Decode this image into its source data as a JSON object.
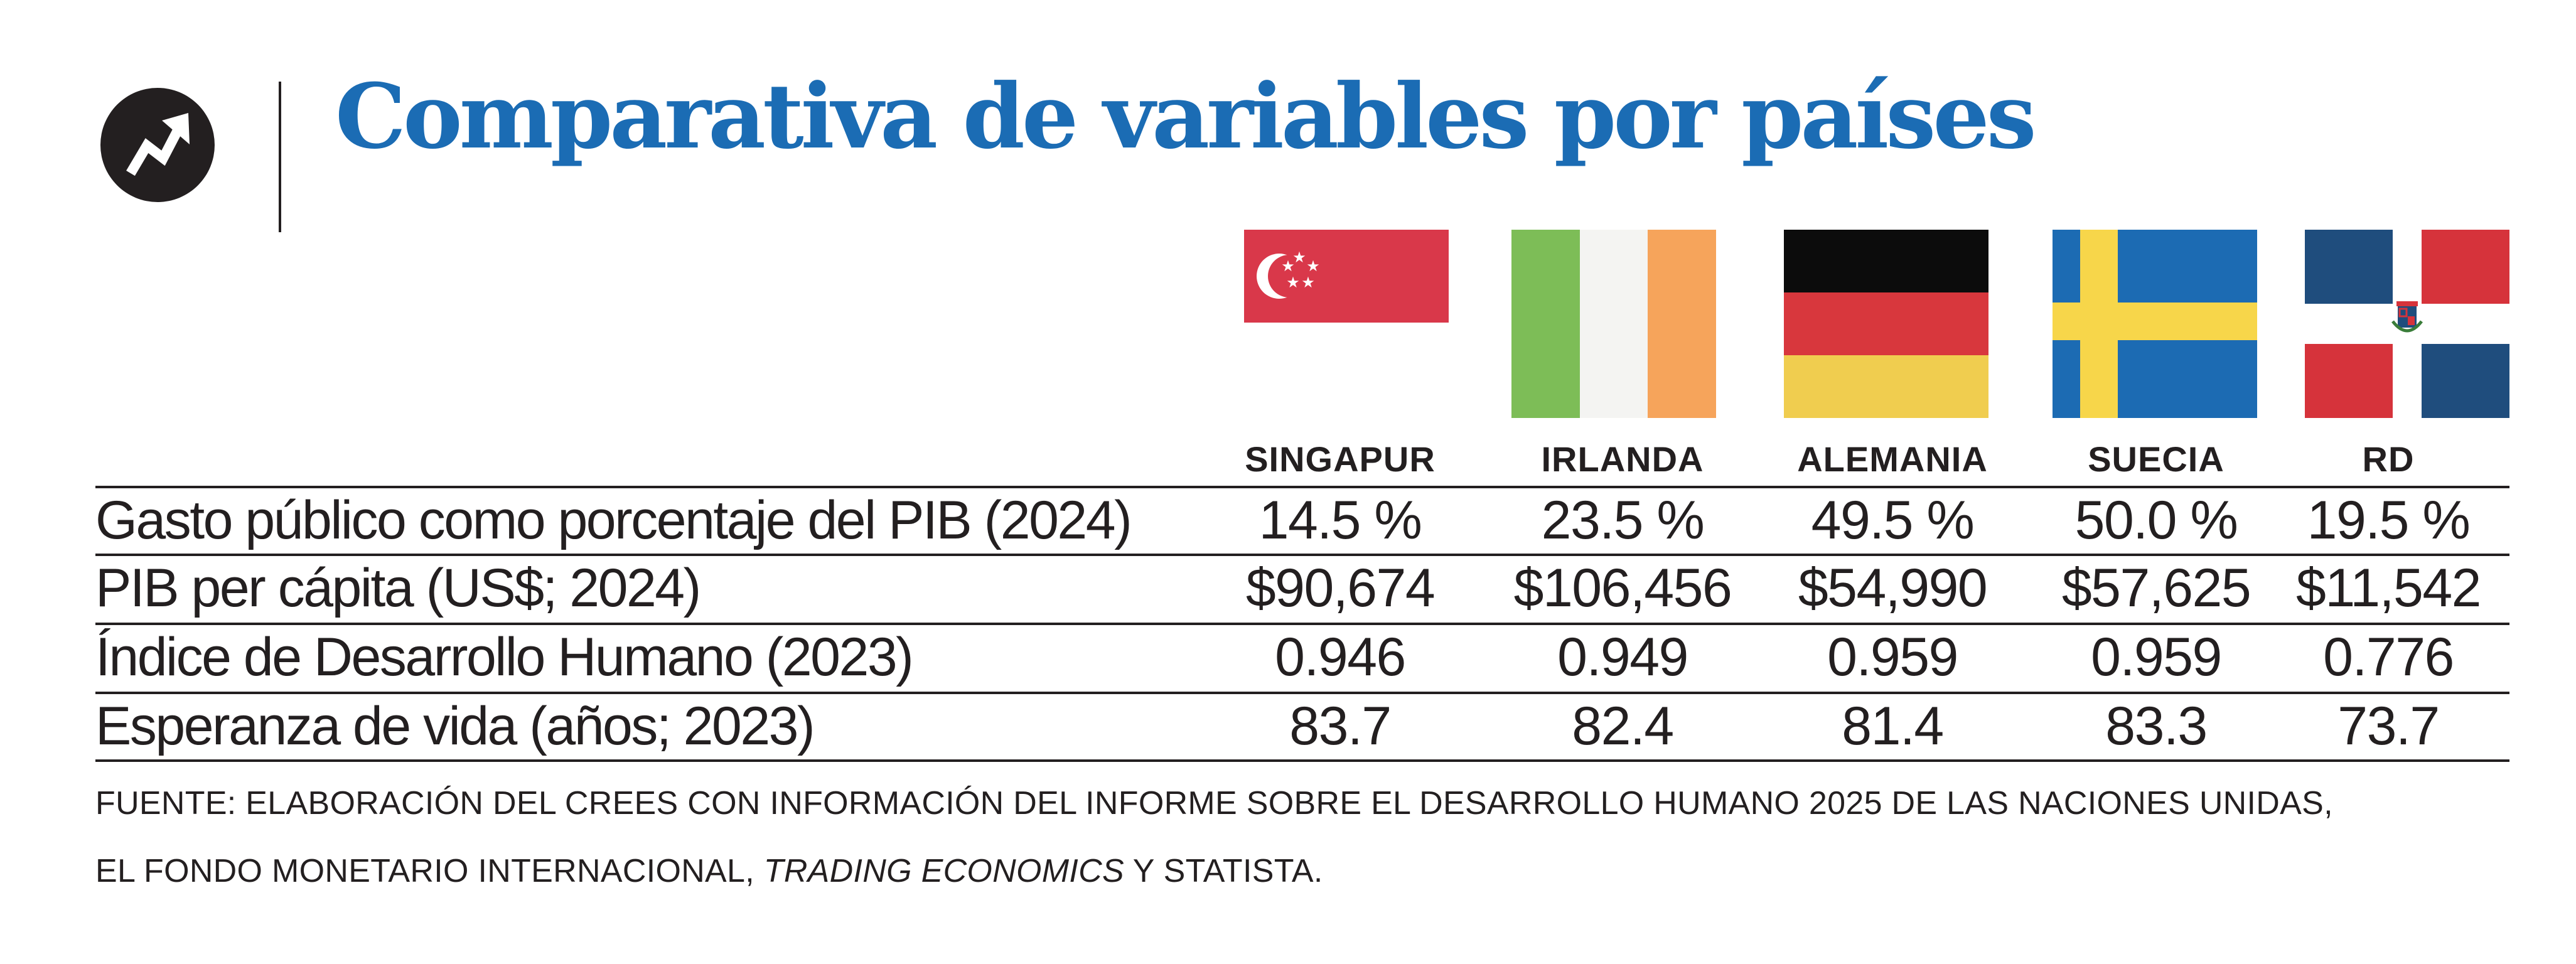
{
  "logo": {
    "icon": "trend-arrow-icon"
  },
  "title": "Comparativa de variables por países",
  "chart_data": {
    "type": "table",
    "title": "Comparativa de variables por países",
    "columns": [
      {
        "key": "singapur",
        "name": "SINGAPUR",
        "flag": "singapore-flag-icon"
      },
      {
        "key": "irlanda",
        "name": "IRLANDA",
        "flag": "ireland-flag-icon"
      },
      {
        "key": "alemania",
        "name": "ALEMANIA",
        "flag": "germany-flag-icon"
      },
      {
        "key": "suecia",
        "name": "SUECIA",
        "flag": "sweden-flag-icon"
      },
      {
        "key": "rd",
        "name": "RD",
        "flag": "dominican-republic-flag-icon"
      }
    ],
    "rows": [
      {
        "label": "Gasto público como porcentaje del PIB (2024)",
        "values": [
          "14.5 %",
          "23.5 %",
          "49.5 %",
          "50.0 %",
          "19.5 %"
        ]
      },
      {
        "label": "PIB per cápita (US$; 2024)",
        "values": [
          "$90,674",
          "$106,456",
          "$54,990",
          "$57,625",
          "$11,542"
        ]
      },
      {
        "label": "Índice de Desarrollo Humano (2023)",
        "values": [
          "0.946",
          "0.949",
          "0.959",
          "0.959",
          "0.776"
        ]
      },
      {
        "label": "Esperanza de vida (años; 2023)",
        "values": [
          "83.7",
          "82.4",
          "81.4",
          "83.3",
          "73.7"
        ]
      }
    ]
  },
  "source": {
    "line1": "FUENTE: ELABORACIÓN DEL CREES CON INFORMACIÓN DEL INFORME SOBRE EL DESARROLLO HUMANO 2025 DE LAS NACIONES UNIDAS,",
    "line2_pre": "EL FONDO MONETARIO INTERNACIONAL, ",
    "line2_italic": "TRADING ECONOMICS",
    "line2_post": " Y STATISTA."
  },
  "colors": {
    "title": "#1b6cb4",
    "text": "#231f20",
    "singapore_red": "#d9384a",
    "ireland_green": "#7dbd57",
    "ireland_white": "#f4f4f2",
    "ireland_orange": "#f6a45b",
    "germany_black": "#0c0c0c",
    "germany_red": "#d8373d",
    "germany_gold": "#f0cd4f",
    "sweden_blue": "#1c6bb3",
    "sweden_yellow": "#f7d64a",
    "dr_blue": "#1f4d7d",
    "dr_red": "#d6333b"
  }
}
